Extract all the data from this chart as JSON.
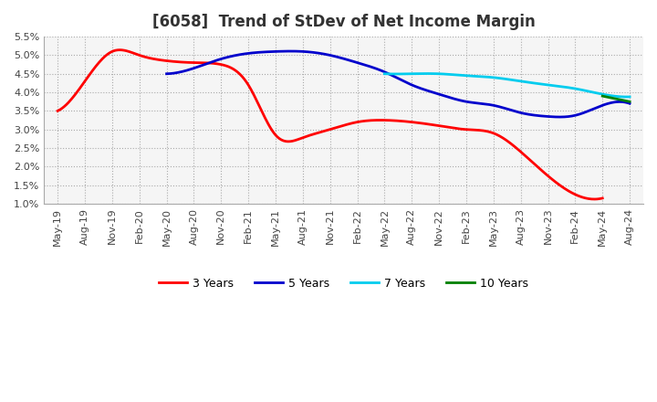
{
  "title": "[6058]  Trend of StDev of Net Income Margin",
  "ylim": [
    0.01,
    0.055
  ],
  "yticks": [
    0.01,
    0.015,
    0.02,
    0.025,
    0.03,
    0.035,
    0.04,
    0.045,
    0.05,
    0.055
  ],
  "ytick_labels": [
    "1.0%",
    "1.5%",
    "2.0%",
    "2.5%",
    "3.0%",
    "3.5%",
    "4.0%",
    "4.5%",
    "5.0%",
    "5.5%"
  ],
  "x_labels": [
    "May-19",
    "Aug-19",
    "Nov-19",
    "Feb-20",
    "May-20",
    "Aug-20",
    "Nov-20",
    "Feb-21",
    "May-21",
    "Aug-21",
    "Nov-21",
    "Feb-22",
    "May-22",
    "Aug-22",
    "Nov-22",
    "Feb-23",
    "May-23",
    "Aug-23",
    "Nov-23",
    "Feb-24",
    "May-24",
    "Aug-24"
  ],
  "series": {
    "3 Years": {
      "color": "#FF0000",
      "values": [
        0.035,
        0.043,
        0.051,
        0.05,
        0.0485,
        0.048,
        0.0475,
        0.042,
        0.0285,
        0.0278,
        0.03,
        0.032,
        0.0325,
        0.032,
        0.031,
        0.03,
        0.029,
        0.024,
        0.0175,
        0.0125,
        0.0115,
        null
      ]
    },
    "5 Years": {
      "color": "#0000CC",
      "values": [
        null,
        null,
        null,
        null,
        0.045,
        0.0465,
        0.049,
        0.0505,
        0.051,
        0.051,
        0.05,
        0.048,
        0.0455,
        0.042,
        0.0395,
        0.0375,
        0.0365,
        0.0345,
        0.0335,
        0.0338,
        0.0365,
        0.037
      ]
    },
    "7 Years": {
      "color": "#00CCEE",
      "values": [
        null,
        null,
        null,
        null,
        null,
        null,
        null,
        null,
        null,
        null,
        null,
        null,
        0.045,
        0.045,
        0.045,
        0.0445,
        0.044,
        0.043,
        0.042,
        0.041,
        0.0395,
        0.0388
      ]
    },
    "10 Years": {
      "color": "#008000",
      "values": [
        null,
        null,
        null,
        null,
        null,
        null,
        null,
        null,
        null,
        null,
        null,
        null,
        null,
        null,
        null,
        null,
        null,
        null,
        null,
        null,
        0.039,
        0.0375
      ]
    }
  },
  "background_color": "#FFFFFF",
  "plot_bg_color": "#F5F5F5",
  "grid_color": "#AAAAAA",
  "title_fontsize": 12,
  "tick_fontsize": 8,
  "legend_fontsize": 9,
  "linewidth": 2.0
}
